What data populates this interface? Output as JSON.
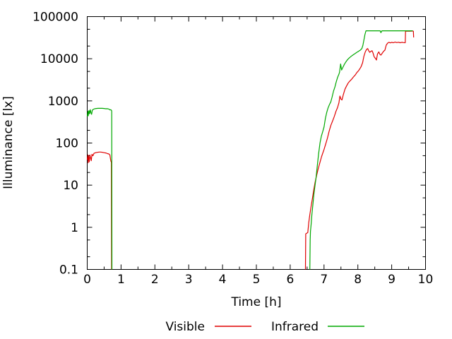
{
  "chart_data": {
    "type": "line",
    "title": "",
    "xlabel": "Time [h]",
    "ylabel": "Illuminance [lx]",
    "xlim": [
      0,
      10
    ],
    "ylim": [
      0.1,
      100000
    ],
    "yscale": "log",
    "grid": false,
    "legend_position": "bottom-center",
    "x_ticks": [
      0,
      1,
      2,
      3,
      4,
      5,
      6,
      7,
      8,
      9,
      10
    ],
    "x_minor_step": 0.5,
    "y_ticks": [
      {
        "label": "100000",
        "exp": 5
      },
      {
        "label": "10000",
        "exp": 4
      },
      {
        "label": "1000",
        "exp": 3
      },
      {
        "label": "100",
        "exp": 2
      },
      {
        "label": "10",
        "exp": 1
      },
      {
        "label": "1",
        "exp": 0
      },
      {
        "label": "0.1",
        "exp": -1
      }
    ],
    "y_minor_multiples": [
      2,
      5
    ],
    "series": [
      {
        "name": "Visible",
        "color": "#e00000",
        "segments": [
          [
            [
              0.0,
              40
            ],
            [
              0.02,
              52
            ],
            [
              0.03,
              34
            ],
            [
              0.04,
              48
            ],
            [
              0.06,
              36
            ],
            [
              0.08,
              52
            ],
            [
              0.1,
              44
            ],
            [
              0.12,
              38
            ],
            [
              0.14,
              54
            ],
            [
              0.17,
              50
            ],
            [
              0.2,
              57
            ],
            [
              0.25,
              59
            ],
            [
              0.3,
              60
            ],
            [
              0.35,
              61
            ],
            [
              0.4,
              61
            ],
            [
              0.45,
              60
            ],
            [
              0.5,
              59
            ],
            [
              0.55,
              58
            ],
            [
              0.6,
              56
            ],
            [
              0.64,
              55
            ],
            [
              0.67,
              52
            ],
            [
              0.69,
              40
            ],
            [
              0.7,
              37
            ],
            [
              0.71,
              36
            ],
            [
              0.715,
              34
            ],
            [
              0.72,
              0.1
            ]
          ],
          [
            [
              6.45,
              0.1
            ],
            [
              6.46,
              0.7
            ],
            [
              6.52,
              0.75
            ],
            [
              6.55,
              1.3
            ],
            [
              6.58,
              2.0
            ],
            [
              6.62,
              3.2
            ],
            [
              6.66,
              5
            ],
            [
              6.7,
              8
            ],
            [
              6.74,
              12
            ],
            [
              6.78,
              17
            ],
            [
              6.83,
              25
            ],
            [
              6.88,
              35
            ],
            [
              6.93,
              48
            ],
            [
              7.0,
              70
            ],
            [
              7.05,
              95
            ],
            [
              7.1,
              130
            ],
            [
              7.15,
              190
            ],
            [
              7.2,
              260
            ],
            [
              7.25,
              330
            ],
            [
              7.3,
              420
            ],
            [
              7.35,
              560
            ],
            [
              7.4,
              700
            ],
            [
              7.44,
              900
            ],
            [
              7.47,
              1300
            ],
            [
              7.5,
              1100
            ],
            [
              7.53,
              1050
            ],
            [
              7.57,
              1400
            ],
            [
              7.62,
              1900
            ],
            [
              7.67,
              2300
            ],
            [
              7.72,
              2700
            ],
            [
              7.77,
              3000
            ],
            [
              7.82,
              3300
            ],
            [
              7.87,
              3700
            ],
            [
              7.92,
              4100
            ],
            [
              7.97,
              4700
            ],
            [
              8.02,
              5200
            ],
            [
              8.07,
              6000
            ],
            [
              8.1,
              6600
            ],
            [
              8.14,
              8000
            ],
            [
              8.18,
              11500
            ],
            [
              8.22,
              14500
            ],
            [
              8.26,
              16800
            ],
            [
              8.29,
              17500
            ],
            [
              8.32,
              15500
            ],
            [
              8.35,
              14200
            ],
            [
              8.38,
              14800
            ],
            [
              8.42,
              15500
            ],
            [
              8.45,
              13500
            ],
            [
              8.48,
              11200
            ],
            [
              8.52,
              10200
            ],
            [
              8.55,
              9300
            ],
            [
              8.58,
              13000
            ],
            [
              8.62,
              14500
            ],
            [
              8.65,
              12800
            ],
            [
              8.68,
              12200
            ],
            [
              8.72,
              13500
            ],
            [
              8.76,
              15000
            ],
            [
              8.8,
              16000
            ],
            [
              8.84,
              21000
            ],
            [
              8.88,
              23500
            ],
            [
              8.92,
              24500
            ],
            [
              8.96,
              23800
            ],
            [
              9.0,
              24500
            ],
            [
              9.05,
              24000
            ],
            [
              9.1,
              24800
            ],
            [
              9.15,
              24200
            ],
            [
              9.2,
              24600
            ],
            [
              9.25,
              24000
            ],
            [
              9.3,
              24500
            ],
            [
              9.35,
              24200
            ],
            [
              9.4,
              24000
            ],
            [
              9.41,
              45000
            ],
            [
              9.55,
              45200
            ],
            [
              9.62,
              45500
            ],
            [
              9.64,
              45000
            ],
            [
              9.65,
              32000
            ]
          ]
        ]
      },
      {
        "name": "Infrared",
        "color": "#00a800",
        "segments": [
          [
            [
              0.0,
              430
            ],
            [
              0.02,
              560
            ],
            [
              0.03,
              440
            ],
            [
              0.05,
              590
            ],
            [
              0.07,
              500
            ],
            [
              0.09,
              620
            ],
            [
              0.11,
              520
            ],
            [
              0.13,
              480
            ],
            [
              0.15,
              600
            ],
            [
              0.18,
              630
            ],
            [
              0.22,
              650
            ],
            [
              0.27,
              660
            ],
            [
              0.32,
              665
            ],
            [
              0.38,
              668
            ],
            [
              0.44,
              665
            ],
            [
              0.5,
              660
            ],
            [
              0.55,
              650
            ],
            [
              0.6,
              652
            ],
            [
              0.64,
              640
            ],
            [
              0.67,
              610
            ],
            [
              0.7,
              615
            ],
            [
              0.72,
              590
            ],
            [
              0.725,
              560
            ],
            [
              0.73,
              0.1
            ]
          ],
          [
            [
              6.58,
              0.1
            ],
            [
              6.59,
              0.5
            ],
            [
              6.6,
              0.8
            ],
            [
              6.62,
              1.2
            ],
            [
              6.64,
              2.0
            ],
            [
              6.67,
              3.4
            ],
            [
              6.7,
              6
            ],
            [
              6.73,
              9.5
            ],
            [
              6.76,
              14
            ],
            [
              6.8,
              28
            ],
            [
              6.84,
              55
            ],
            [
              6.88,
              100
            ],
            [
              6.92,
              145
            ],
            [
              6.96,
              185
            ],
            [
              7.0,
              240
            ],
            [
              7.04,
              380
            ],
            [
              7.08,
              530
            ],
            [
              7.12,
              680
            ],
            [
              7.16,
              820
            ],
            [
              7.2,
              950
            ],
            [
              7.24,
              1250
            ],
            [
              7.28,
              1700
            ],
            [
              7.32,
              2100
            ],
            [
              7.36,
              2800
            ],
            [
              7.4,
              3600
            ],
            [
              7.44,
              4300
            ],
            [
              7.46,
              4800
            ],
            [
              7.49,
              7500
            ],
            [
              7.52,
              5400
            ],
            [
              7.56,
              6300
            ],
            [
              7.6,
              7300
            ],
            [
              7.64,
              8300
            ],
            [
              7.68,
              9200
            ],
            [
              7.72,
              10000
            ],
            [
              7.76,
              10700
            ],
            [
              7.8,
              11400
            ],
            [
              7.84,
              12000
            ],
            [
              7.88,
              12700
            ],
            [
              7.92,
              13300
            ],
            [
              7.96,
              14000
            ],
            [
              8.0,
              14700
            ],
            [
              8.04,
              15400
            ],
            [
              8.08,
              16200
            ],
            [
              8.12,
              17500
            ],
            [
              8.15,
              21000
            ],
            [
              8.18,
              28000
            ],
            [
              8.21,
              38000
            ],
            [
              8.24,
              46000
            ],
            [
              8.66,
              46000
            ],
            [
              8.68,
              41500
            ],
            [
              8.71,
              46000
            ],
            [
              9.62,
              46000
            ]
          ]
        ]
      }
    ]
  }
}
